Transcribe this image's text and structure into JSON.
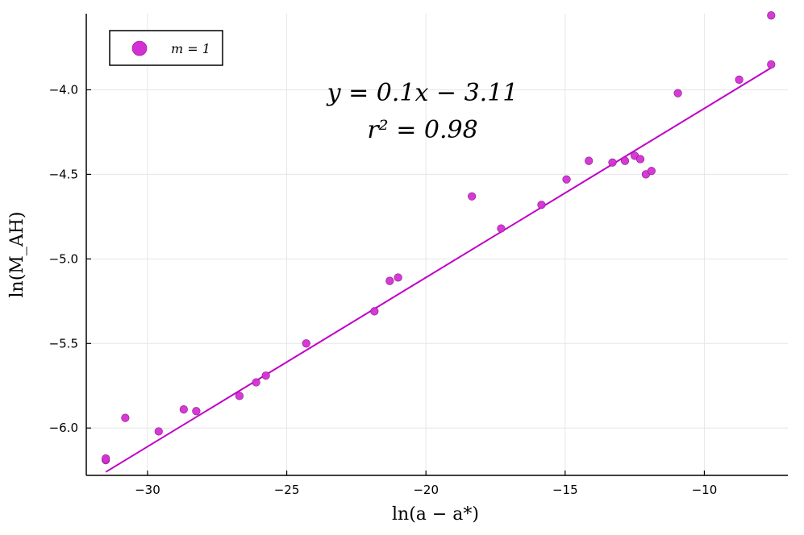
{
  "chart_data": {
    "type": "scatter",
    "xlabel": "ln(a − a*)",
    "ylabel": "ln(M_AH)",
    "xlim": [
      -32.2,
      -7.0
    ],
    "ylim": [
      -6.28,
      -3.55
    ],
    "xticks": [
      -30,
      -25,
      -20,
      -15,
      -10
    ],
    "yticks": [
      -6.0,
      -5.5,
      -5.0,
      -4.5,
      -4.0
    ],
    "xtick_labels": [
      "−30",
      "−25",
      "−20",
      "−15",
      "−10"
    ],
    "ytick_labels": [
      "−6.0",
      "−5.5",
      "−5.0",
      "−4.5",
      "−4.0"
    ],
    "grid": true,
    "legend": {
      "placement": "top-left",
      "entries": [
        "m = 1"
      ]
    },
    "annotations": [
      "y = 0.1x − 3.11",
      "r² = 0.98"
    ],
    "colors": {
      "marker": "#d42fd4",
      "marker_edge": "#8a1a8a",
      "fit_line": "#c000c8"
    },
    "series": [
      {
        "name": "m = 1",
        "points": [
          [
            -31.5,
            -6.19
          ],
          [
            -31.5,
            -6.18
          ],
          [
            -30.8,
            -5.94
          ],
          [
            -29.6,
            -6.02
          ],
          [
            -28.7,
            -5.89
          ],
          [
            -28.25,
            -5.9
          ],
          [
            -26.7,
            -5.81
          ],
          [
            -26.1,
            -5.73
          ],
          [
            -25.75,
            -5.69
          ],
          [
            -24.3,
            -5.5
          ],
          [
            -21.85,
            -5.31
          ],
          [
            -21.3,
            -5.13
          ],
          [
            -21.0,
            -5.11
          ],
          [
            -18.35,
            -4.63
          ],
          [
            -17.3,
            -4.82
          ],
          [
            -15.85,
            -4.68
          ],
          [
            -14.95,
            -4.53
          ],
          [
            -14.15,
            -4.42
          ],
          [
            -13.3,
            -4.43
          ],
          [
            -12.85,
            -4.42
          ],
          [
            -12.5,
            -4.39
          ],
          [
            -12.3,
            -4.41
          ],
          [
            -12.1,
            -4.5
          ],
          [
            -11.9,
            -4.48
          ],
          [
            -10.95,
            -4.02
          ],
          [
            -8.75,
            -3.94
          ],
          [
            -7.6,
            -3.85
          ],
          [
            -7.6,
            -3.56
          ]
        ]
      }
    ],
    "fit_line": {
      "slope": 0.1,
      "intercept": -3.11,
      "x_range": [
        -31.5,
        -7.6
      ]
    }
  }
}
